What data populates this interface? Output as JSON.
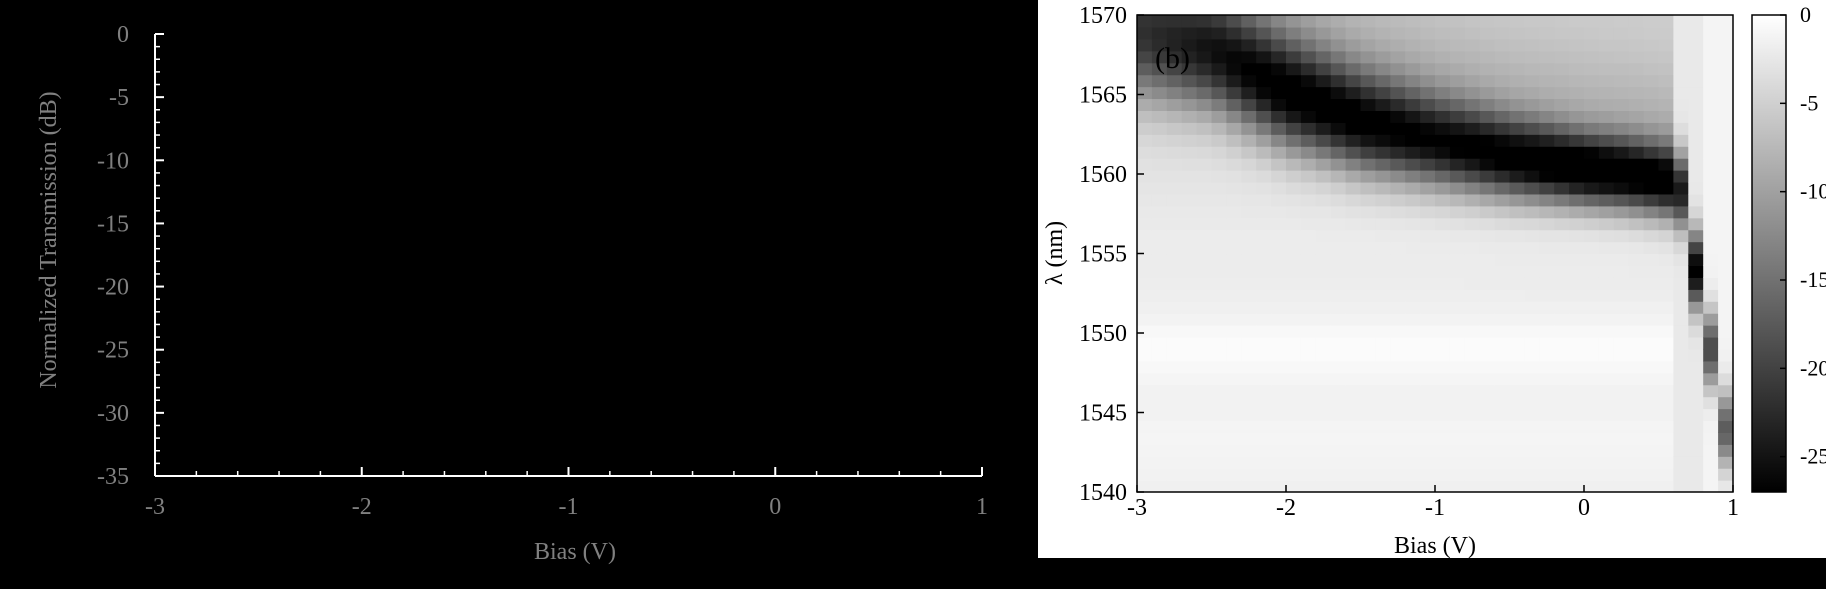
{
  "chart_data": [
    {
      "type": "line",
      "xlabel": "Bias (V)",
      "ylabel": "Normalized Transmission (dB)",
      "xlim": [
        -3,
        1
      ],
      "ylim": [
        -35,
        0
      ],
      "x_ticks": [
        "-3",
        "-2",
        "-1",
        "0",
        "1"
      ],
      "y_ticks": [
        "0",
        "-5",
        "-10",
        "-15",
        "-20",
        "-25",
        "-30",
        "-35"
      ],
      "series": [],
      "colors": {
        "background": "#000000",
        "axis": "#ffffff",
        "text": "#808080"
      },
      "grid": false
    },
    {
      "type": "heatmap",
      "panel_label": "(b)",
      "xlabel": "Bias (V)",
      "ylabel": "λ (nm)",
      "xlim": [
        -3,
        1
      ],
      "ylim": [
        1540,
        1570
      ],
      "x_ticks": [
        "-3",
        "-2",
        "-1",
        "0",
        "1"
      ],
      "y_ticks": [
        "1570",
        "1565",
        "1560",
        "1555",
        "1550",
        "1545",
        "1540"
      ],
      "colorbar": {
        "ticks": [
          "0",
          "-5",
          "-10",
          "-15",
          "-20",
          "-25"
        ],
        "range": [
          -27,
          0
        ],
        "colormap": "gray"
      },
      "x_step": 0.1,
      "y_step": 0.75,
      "resonance": {
        "bias": [
          -3.0,
          -2.5,
          -2.0,
          -1.5,
          -1.0,
          -0.5,
          0.0,
          0.3,
          0.6
        ],
        "wavelength_nm": [
          1568.5,
          1567.5,
          1565.0,
          1563.2,
          1562.0,
          1561.0,
          1560.3,
          1560.0,
          1559.5
        ],
        "depth_dB": [
          -14,
          -18,
          -22,
          -22,
          -21,
          -23,
          -26,
          -25,
          -24
        ]
      },
      "breakdown_column": {
        "bias": [
          0.65,
          0.75,
          0.85,
          0.95
        ],
        "wavelength_nm": [
          1559.0,
          1554.0,
          1549.0,
          1544.0
        ],
        "depth_dB": [
          -22,
          -25,
          -18,
          -16
        ]
      },
      "colors": {
        "background": "#ffffff",
        "axis": "#000000",
        "text": "#000000"
      }
    }
  ]
}
